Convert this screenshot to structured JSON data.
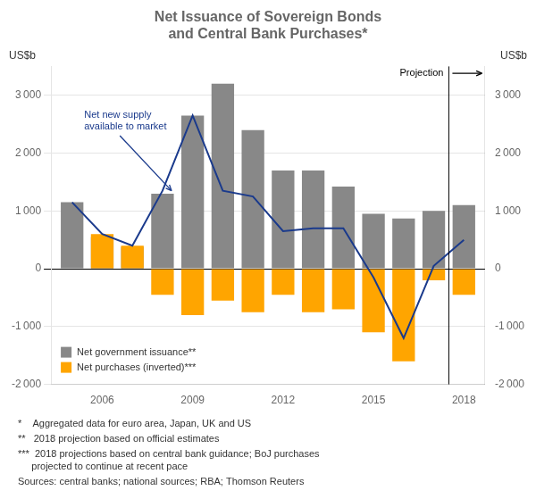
{
  "chart_data": {
    "type": "bar",
    "title": "Net Issuance of Sovereign Bonds\nand Central Bank Purchases*",
    "ylabel": "US$b",
    "y2label": "US$b",
    "x": [
      2005,
      2006,
      2007,
      2008,
      2009,
      2010,
      2011,
      2012,
      2013,
      2014,
      2015,
      2016,
      2017,
      2018
    ],
    "series": [
      {
        "name": "Net government issuance**",
        "color": "#888888",
        "values": [
          1150,
          550,
          380,
          1300,
          2650,
          3200,
          2400,
          1700,
          1700,
          1420,
          950,
          870,
          1000,
          1100
        ]
      },
      {
        "name": "Net purchases (inverted)***",
        "color": "#FFA500",
        "values": [
          0,
          600,
          400,
          -450,
          -800,
          -550,
          -750,
          -450,
          -750,
          -700,
          -1100,
          -1600,
          -200,
          -450
        ]
      },
      {
        "type": "line",
        "color": "#1a3a8c",
        "values": [
          1150,
          600,
          400,
          1350,
          2650,
          1350,
          1250,
          650,
          700,
          700,
          -150,
          -1200,
          50,
          500
        ]
      }
    ],
    "xlim": [
      2004.3,
      2018.7
    ],
    "xticks": [
      2006,
      2009,
      2012,
      2015,
      2018
    ],
    "ylim": [
      -2000,
      3500
    ],
    "yticks": [
      {
        "value": -2000,
        "label": "-2 000"
      },
      {
        "value": -1000,
        "label": "-1 000"
      },
      0,
      {
        "value": 1000,
        "label": "1 000"
      },
      {
        "value": 2000,
        "label": "2 000"
      },
      {
        "value": 3000,
        "label": "3 000"
      }
    ],
    "y2lim": [
      -2000,
      3500
    ],
    "y2ticks": [
      {
        "value": -2000,
        "label": "-2 000"
      },
      {
        "value": -1000,
        "label": "-1 000"
      },
      0,
      {
        "value": 1000,
        "label": "1 000"
      },
      {
        "value": 2000,
        "label": "2 000"
      },
      {
        "value": 3000,
        "label": "3 000"
      }
    ],
    "grid": true,
    "legend": "lower left",
    "projection_x": 2017.5,
    "annotations": [
      {
        "text": "Projection",
        "y": 3380,
        "arrow_to": [
          2018.6,
          3380
        ]
      },
      {
        "text": "Net new supply\navailable to market",
        "x": 2005.4,
        "y": 2750,
        "arrow_to": [
          2008.3,
          1350
        ],
        "color": "#1a3a8c"
      }
    ],
    "footnotes": [
      "*    Aggregated data for euro area, Japan, UK and US",
      "**   2018 projection based on official estimates",
      "***  2018 projections based on central bank guidance; BoJ purchases\n     projected to continue at recent pace",
      "Sources: central banks; national sources; RBA; Thomson Reuters"
    ]
  }
}
